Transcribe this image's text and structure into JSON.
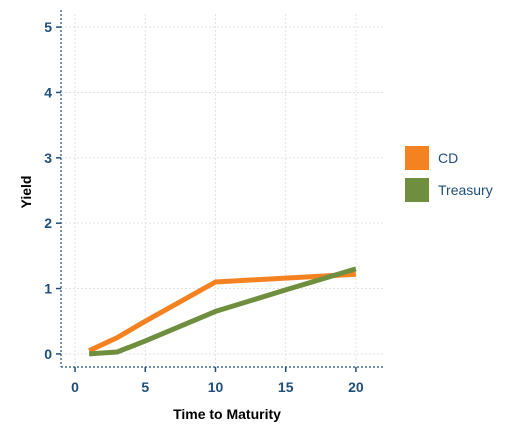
{
  "colors": {
    "axis": "#1f4e79",
    "grid": "#e3e3e3",
    "tick_text": "#1f4e79",
    "legend_text": "#1f4e79"
  },
  "chart_data": {
    "type": "line",
    "xlabel": "Time to Maturity",
    "ylabel": "Yield",
    "xlim": [
      -1,
      22
    ],
    "ylim": [
      -0.2,
      5.2
    ],
    "xticks": [
      0,
      5,
      10,
      15,
      20
    ],
    "yticks": [
      0,
      1,
      2,
      3,
      4,
      5
    ],
    "grid": true,
    "legend_position": "right",
    "series": [
      {
        "name": "CD",
        "color": "#f58220",
        "x": [
          1,
          3,
          5,
          10,
          20
        ],
        "y": [
          0.05,
          0.25,
          0.5,
          1.1,
          1.22
        ]
      },
      {
        "name": "Treasury",
        "color": "#6f8f3e",
        "x": [
          1,
          3,
          5,
          10,
          15,
          20
        ],
        "y": [
          0.0,
          0.03,
          0.2,
          0.65,
          0.98,
          1.3
        ]
      }
    ]
  }
}
